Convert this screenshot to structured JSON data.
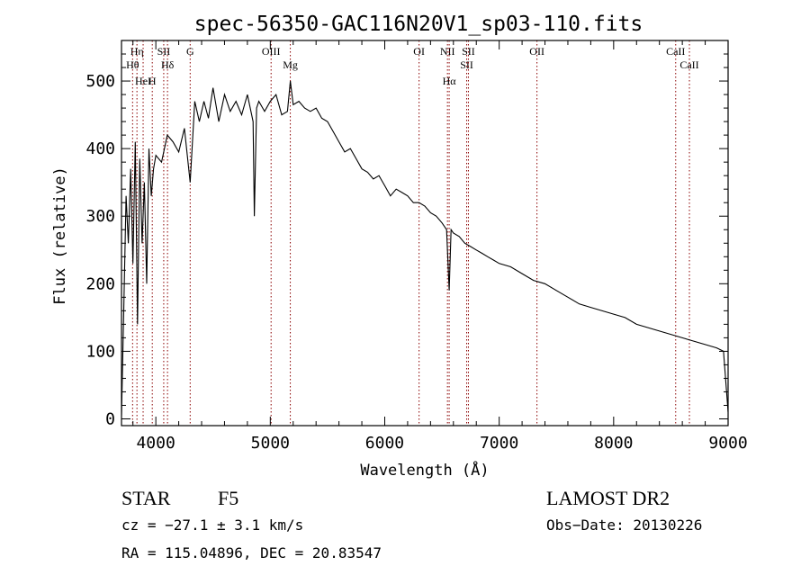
{
  "chart_data": {
    "type": "line",
    "title": "spec-56350-GAC116N20V1_sp03-110.fits",
    "xlabel": "Wavelength (Å)",
    "ylabel": "Flux (relative)",
    "xlim": [
      3700,
      9000
    ],
    "ylim": [
      -10,
      560
    ],
    "xticks": [
      4000,
      5000,
      6000,
      7000,
      8000,
      9000
    ],
    "yticks": [
      0,
      100,
      200,
      300,
      400,
      500
    ],
    "xtick_labels": [
      "4000",
      "5000",
      "6000",
      "7000",
      "8000",
      "9000"
    ],
    "ytick_labels": [
      "0",
      "100",
      "200",
      "300",
      "400",
      "500"
    ],
    "grid": false,
    "legend": "none",
    "line_color": "#000000",
    "series": [
      {
        "x": [
          3700,
          3720,
          3740,
          3760,
          3780,
          3800,
          3820,
          3840,
          3860,
          3880,
          3900,
          3920,
          3940,
          3960,
          3980,
          4000,
          4050,
          4100,
          4150,
          4200,
          4250,
          4300,
          4340,
          4380,
          4420,
          4460,
          4500,
          4550,
          4600,
          4650,
          4700,
          4750,
          4800,
          4850,
          4861,
          4880,
          4900,
          4950,
          5000,
          5050,
          5100,
          5150,
          5175,
          5200,
          5250,
          5300,
          5350,
          5400,
          5450,
          5500,
          5550,
          5600,
          5650,
          5700,
          5750,
          5800,
          5850,
          5900,
          5950,
          6000,
          6050,
          6100,
          6150,
          6200,
          6250,
          6300,
          6350,
          6400,
          6450,
          6500,
          6540,
          6563,
          6580,
          6600,
          6650,
          6700,
          6750,
          6800,
          6850,
          6900,
          6950,
          7000,
          7100,
          7200,
          7300,
          7400,
          7500,
          7600,
          7700,
          7800,
          7900,
          8000,
          8100,
          8200,
          8300,
          8400,
          8500,
          8600,
          8700,
          8800,
          8900,
          8960,
          9000
        ],
        "y": [
          5,
          160,
          330,
          260,
          370,
          230,
          410,
          140,
          385,
          260,
          350,
          200,
          400,
          330,
          370,
          390,
          380,
          420,
          410,
          395,
          430,
          350,
          470,
          440,
          470,
          445,
          490,
          440,
          480,
          455,
          470,
          450,
          480,
          440,
          300,
          460,
          470,
          455,
          470,
          480,
          450,
          455,
          500,
          465,
          470,
          460,
          455,
          460,
          445,
          440,
          425,
          410,
          395,
          400,
          385,
          370,
          365,
          355,
          360,
          345,
          330,
          340,
          335,
          330,
          320,
          320,
          315,
          305,
          300,
          290,
          280,
          190,
          280,
          275,
          270,
          260,
          255,
          250,
          245,
          240,
          235,
          230,
          225,
          215,
          205,
          200,
          190,
          180,
          170,
          165,
          160,
          155,
          150,
          140,
          135,
          130,
          125,
          120,
          115,
          110,
          105,
          100,
          10
        ]
      }
    ],
    "spectral_lines": [
      {
        "label": "Hη",
        "x": 3835
      },
      {
        "label": "Hθ",
        "x": 3797
      },
      {
        "label": "HeI",
        "x": 3889
      },
      {
        "label": "SII",
        "x": 4069
      },
      {
        "label": "H",
        "x": 3969
      },
      {
        "label": "Hδ",
        "x": 4102
      },
      {
        "label": "G",
        "x": 4300
      },
      {
        "label": "OIII",
        "x": 5007
      },
      {
        "label": "Mg",
        "x": 5175
      },
      {
        "label": "OI",
        "x": 6300
      },
      {
        "label": "NII",
        "x": 6548
      },
      {
        "label": "SII",
        "x": 6716
      },
      {
        "label": "SII",
        "x": 6731
      },
      {
        "label": "Hα",
        "x": 6563
      },
      {
        "label": "OII",
        "x": 7330
      },
      {
        "label": "CaII",
        "x": 8542
      },
      {
        "label": "CaII",
        "x": 8662
      }
    ]
  },
  "info": {
    "object_class": "STAR",
    "subclass": "F5",
    "survey": "LAMOST DR2",
    "cz": "cz = −27.1 ± 3.1 km/s",
    "obs_date": "Obs−Date: 20130226",
    "coords": "RA = 115.04896, DEC =  20.83547"
  }
}
